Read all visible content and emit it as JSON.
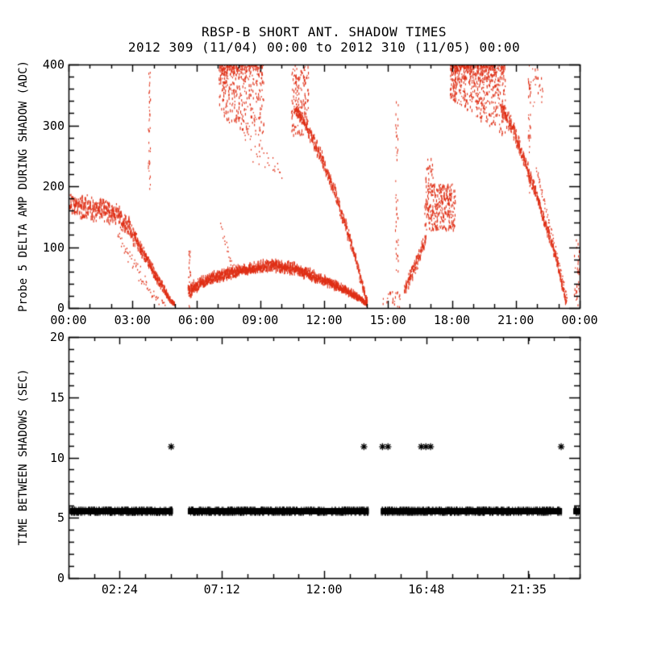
{
  "title": {
    "line1": "RBSP-B SHORT ANT. SHADOW TIMES",
    "line2": "2012 309 (11/04) 00:00 to 2012 310 (11/05) 00:00"
  },
  "colors": {
    "top_scatter": "#df2f16",
    "bottom_scatter": "#000000",
    "frame": "#000000",
    "background": "#ffffff"
  },
  "chart_data": [
    {
      "type": "scatter",
      "panel": "top",
      "ylabel": "Probe 5 DELTA AMP DURING SHADOW (ADC)",
      "xlabel": "",
      "xlim_hours": [
        0,
        24
      ],
      "ylim": [
        0,
        400
      ],
      "grid": false,
      "legend": null,
      "marker": "small-vertical-dash",
      "color": "#df2f16",
      "x_tick_labels": [
        "00:00",
        "03:00",
        "06:00",
        "09:00",
        "12:00",
        "15:00",
        "18:00",
        "21:00",
        "00:00"
      ],
      "x_tick_hours": [
        0,
        3,
        6,
        9,
        12,
        15,
        18,
        21,
        24
      ],
      "x_minor_step_hours": 1,
      "y_tick_labels": [
        "0",
        "100",
        "200",
        "300",
        "400"
      ],
      "y_ticks": [
        0,
        100,
        200,
        300,
        400
      ],
      "y_minor_step": 20,
      "features": [
        {
          "name": "dawn-plateau-band",
          "draw": "dash-band",
          "points": [
            [
              0.05,
              168
            ],
            [
              0.8,
              166
            ],
            [
              1.6,
              160
            ],
            [
              2.3,
              152
            ],
            [
              2.8,
              133
            ],
            [
              3.3,
              102
            ],
            [
              3.8,
              70
            ],
            [
              4.3,
              40
            ],
            [
              4.7,
              16
            ],
            [
              4.95,
              6
            ]
          ],
          "hw": [
            20,
            22,
            22,
            20,
            18,
            15,
            12,
            9,
            6,
            3
          ],
          "density": 2.6
        },
        {
          "name": "dawn-under-scatter",
          "draw": "dot-curve",
          "points": [
            [
              2.3,
              120
            ],
            [
              2.9,
              80
            ],
            [
              3.5,
              45
            ],
            [
              4.1,
              18
            ],
            [
              4.5,
              6
            ]
          ],
          "hw": [
            16,
            20,
            16,
            10,
            4
          ],
          "density": 0.9
        },
        {
          "name": "spike-0347",
          "draw": "spike",
          "t": 3.78,
          "v0": 195,
          "v1": 400,
          "n": 40,
          "jt": 0.05
        },
        {
          "name": "arch-start-spike",
          "draw": "spike",
          "t": 5.66,
          "v0": 0,
          "v1": 95,
          "n": 22,
          "jt": 0.05
        },
        {
          "name": "arch-band",
          "draw": "dash-band",
          "points": [
            [
              5.62,
              28
            ],
            [
              6.2,
              42
            ],
            [
              7.0,
              52
            ],
            [
              8.0,
              61
            ],
            [
              9.0,
              67
            ],
            [
              9.7,
              70
            ],
            [
              10.4,
              66
            ],
            [
              11.1,
              58
            ],
            [
              11.8,
              48
            ],
            [
              12.5,
              37
            ],
            [
              13.1,
              27
            ],
            [
              13.6,
              17
            ],
            [
              14.0,
              6
            ]
          ],
          "hw": [
            14,
            11,
            10,
            10,
            11,
            12,
            11,
            10,
            9,
            8,
            7,
            5,
            3
          ],
          "density": 3.2
        },
        {
          "name": "entry-0710-tail",
          "draw": "dot-curve",
          "points": [
            [
              7.15,
              140
            ],
            [
              7.45,
              95
            ],
            [
              7.75,
              65
            ]
          ],
          "hw": [
            8,
            8,
            8
          ],
          "density": 0.8
        },
        {
          "name": "morning-cloud",
          "draw": "cloud",
          "t0": 7.05,
          "t1": 9.15,
          "v0": 250,
          "v1": 400,
          "n": 430,
          "top_bias": true,
          "bottom": [
            [
              7.05,
              332
            ],
            [
              7.5,
              305
            ],
            [
              8.0,
              292
            ],
            [
              8.6,
              288
            ],
            [
              9.15,
              252
            ]
          ]
        },
        {
          "name": "morning-cloud-tail",
          "draw": "dot-curve",
          "points": [
            [
              8.1,
              300
            ],
            [
              8.7,
              255
            ],
            [
              9.3,
              245
            ],
            [
              10.1,
              215
            ]
          ],
          "hw": [
            25,
            28,
            22,
            15
          ],
          "density": 0.5
        },
        {
          "name": "midday-feed-spike",
          "draw": "cloud",
          "t0": 10.45,
          "t1": 11.25,
          "v0": 285,
          "v1": 400,
          "n": 170,
          "top_bias": false
        },
        {
          "name": "midday-diagonal",
          "draw": "dash-band",
          "points": [
            [
              10.6,
              330
            ],
            [
              11.2,
              295
            ],
            [
              11.8,
              252
            ],
            [
              12.3,
              207
            ],
            [
              12.8,
              156
            ],
            [
              13.3,
              102
            ],
            [
              13.7,
              48
            ],
            [
              14.0,
              10
            ]
          ],
          "hw": [
            10,
            12,
            13,
            13,
            12,
            11,
            8,
            4
          ],
          "density": 2.2
        },
        {
          "name": "low-dots-1430",
          "draw": "cloud",
          "t0": 14.75,
          "t1": 15.6,
          "v0": 0,
          "v1": 28,
          "n": 26,
          "top_bias": false
        },
        {
          "name": "spike-1520",
          "draw": "spike",
          "t": 15.4,
          "v0": 60,
          "v1": 340,
          "n": 42,
          "jt": 0.07
        },
        {
          "name": "rise-band-16",
          "draw": "dash-band",
          "points": [
            [
              15.75,
              30
            ],
            [
              16.1,
              55
            ],
            [
              16.45,
              85
            ],
            [
              16.75,
              118
            ]
          ],
          "hw": [
            14,
            15,
            15,
            14
          ],
          "density": 2.0
        },
        {
          "name": "afternoon-blob",
          "draw": "cloud",
          "t0": 16.7,
          "t1": 18.15,
          "v0": 128,
          "v1": 205,
          "n": 330,
          "top_bias": false
        },
        {
          "name": "blob-halo",
          "draw": "cloud",
          "t0": 16.75,
          "t1": 17.1,
          "v0": 205,
          "v1": 252,
          "n": 22,
          "top_bias": false
        },
        {
          "name": "evening-cloud",
          "draw": "cloud",
          "t0": 17.9,
          "t1": 20.5,
          "v0": 250,
          "v1": 400,
          "n": 680,
          "top_bias": true,
          "bottom": [
            [
              17.9,
              345
            ],
            [
              18.6,
              330
            ],
            [
              19.3,
              310
            ],
            [
              20.0,
              295
            ],
            [
              20.5,
              283
            ]
          ]
        },
        {
          "name": "evening-diagonal",
          "draw": "dash-band",
          "points": [
            [
              20.3,
              330
            ],
            [
              20.9,
              290
            ],
            [
              21.4,
              240
            ],
            [
              21.9,
              190
            ],
            [
              22.4,
              135
            ],
            [
              22.9,
              80
            ],
            [
              23.2,
              30
            ],
            [
              23.35,
              8
            ]
          ],
          "hw": [
            20,
            18,
            15,
            13,
            10,
            8,
            5,
            3
          ],
          "density": 2.6
        },
        {
          "name": "spike-2135",
          "draw": "spike",
          "t": 21.62,
          "v0": 185,
          "v1": 400,
          "n": 40,
          "jt": 0.06
        },
        {
          "name": "late-top-dots",
          "draw": "cloud",
          "t0": 21.55,
          "t1": 22.25,
          "v0": 330,
          "v1": 400,
          "n": 26,
          "top_bias": false
        },
        {
          "name": "late-thin-curve",
          "draw": "dot-curve",
          "points": [
            [
              21.95,
              230
            ],
            [
              22.35,
              170
            ],
            [
              22.75,
              112
            ],
            [
              23.1,
              60
            ],
            [
              23.4,
              12
            ]
          ],
          "hw": [
            3,
            3,
            3,
            3,
            2
          ],
          "density": 1.3
        },
        {
          "name": "edge-dots",
          "draw": "cloud",
          "t0": 23.72,
          "t1": 23.98,
          "v0": 5,
          "v1": 115,
          "n": 30,
          "top_bias": false
        }
      ]
    },
    {
      "type": "scatter",
      "panel": "bottom",
      "ylabel": "TIME BETWEEN SHADOWS (SEC)",
      "xlabel": "",
      "xlim_hours": [
        0,
        24
      ],
      "ylim": [
        0,
        20
      ],
      "grid": false,
      "legend": null,
      "marker": "asterisk",
      "color": "#000000",
      "x_tick_labels": [
        "02:24",
        "07:12",
        "12:00",
        "16:48",
        "21:35"
      ],
      "x_tick_hours": [
        2.4,
        7.2,
        12.0,
        16.8,
        21.59
      ],
      "x_minor_step_hours": 1.2,
      "y_tick_labels": [
        "0",
        "5",
        "10",
        "15",
        "20"
      ],
      "y_ticks": [
        0,
        5,
        10,
        15,
        20
      ],
      "y_minor_step": 1,
      "band": {
        "value_sec": 5.55,
        "half_width_sec": 0.28,
        "segments_hours": [
          [
            0.05,
            4.85
          ],
          [
            5.6,
            14.06
          ],
          [
            14.66,
            23.13
          ],
          [
            23.7,
            23.96
          ]
        ]
      },
      "outliers": {
        "value_sec": 10.9,
        "times_hours": [
          4.82,
          13.87,
          14.74,
          15.0,
          16.56,
          16.78,
          17.0,
          23.13
        ]
      }
    }
  ]
}
